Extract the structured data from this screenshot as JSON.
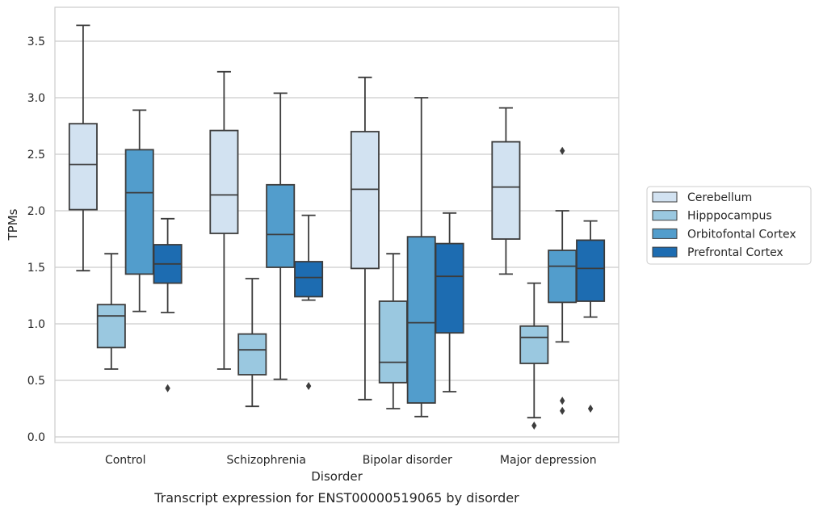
{
  "chart_data": {
    "type": "box",
    "caption": "Transcript expression for ENST00000519065 by disorder",
    "xlabel": "Disorder",
    "ylabel": "TPMs",
    "ylim": [
      -0.05,
      3.8
    ],
    "yticks": [
      "0.0",
      "0.5",
      "1.0",
      "1.5",
      "2.0",
      "2.5",
      "3.0",
      "3.5"
    ],
    "grid": true,
    "legend_position": "right",
    "categories": [
      "Control",
      "Schizophrenia",
      "Bipolar disorder",
      "Major depression"
    ],
    "series": [
      {
        "name": "Cerebellum",
        "color": "#d2e2f1",
        "boxes": [
          {
            "whislo": 1.47,
            "q1": 2.01,
            "med": 2.41,
            "q3": 2.77,
            "whishi": 3.64,
            "fliers": []
          },
          {
            "whislo": 0.6,
            "q1": 1.8,
            "med": 2.14,
            "q3": 2.71,
            "whishi": 3.23,
            "fliers": []
          },
          {
            "whislo": 0.33,
            "q1": 1.49,
            "med": 2.19,
            "q3": 2.7,
            "whishi": 3.18,
            "fliers": []
          },
          {
            "whislo": 1.44,
            "q1": 1.75,
            "med": 2.21,
            "q3": 2.61,
            "whishi": 2.91,
            "fliers": []
          }
        ]
      },
      {
        "name": "Hipppocampus",
        "color": "#9ac8e0",
        "boxes": [
          {
            "whislo": 0.6,
            "q1": 0.79,
            "med": 1.07,
            "q3": 1.17,
            "whishi": 1.62,
            "fliers": []
          },
          {
            "whislo": 0.27,
            "q1": 0.55,
            "med": 0.77,
            "q3": 0.91,
            "whishi": 1.4,
            "fliers": []
          },
          {
            "whislo": 0.25,
            "q1": 0.48,
            "med": 0.66,
            "q3": 1.2,
            "whishi": 1.62,
            "fliers": []
          },
          {
            "whislo": 0.17,
            "q1": 0.65,
            "med": 0.88,
            "q3": 0.98,
            "whishi": 1.36,
            "fliers": [
              0.1
            ]
          }
        ]
      },
      {
        "name": "Orbitofontal Cortex",
        "color": "#529dcc",
        "boxes": [
          {
            "whislo": 1.11,
            "q1": 1.44,
            "med": 2.16,
            "q3": 2.54,
            "whishi": 2.89,
            "fliers": []
          },
          {
            "whislo": 0.51,
            "q1": 1.5,
            "med": 1.79,
            "q3": 2.23,
            "whishi": 3.04,
            "fliers": []
          },
          {
            "whislo": 0.18,
            "q1": 0.3,
            "med": 1.01,
            "q3": 1.77,
            "whishi": 3.0,
            "fliers": []
          },
          {
            "whislo": 0.84,
            "q1": 1.19,
            "med": 1.51,
            "q3": 1.65,
            "whishi": 2.0,
            "fliers": [
              0.23,
              0.32,
              2.53
            ]
          }
        ]
      },
      {
        "name": "Prefrontal Cortex",
        "color": "#1d6cb1",
        "boxes": [
          {
            "whislo": 1.1,
            "q1": 1.36,
            "med": 1.53,
            "q3": 1.7,
            "whishi": 1.93,
            "fliers": [
              0.43
            ]
          },
          {
            "whislo": 1.21,
            "q1": 1.24,
            "med": 1.41,
            "q3": 1.55,
            "whishi": 1.96,
            "fliers": [
              0.45
            ]
          },
          {
            "whislo": 0.4,
            "q1": 0.92,
            "med": 1.42,
            "q3": 1.71,
            "whishi": 1.98,
            "fliers": []
          },
          {
            "whislo": 1.06,
            "q1": 1.2,
            "med": 1.49,
            "q3": 1.74,
            "whishi": 1.91,
            "fliers": [
              0.25
            ]
          }
        ]
      }
    ]
  }
}
